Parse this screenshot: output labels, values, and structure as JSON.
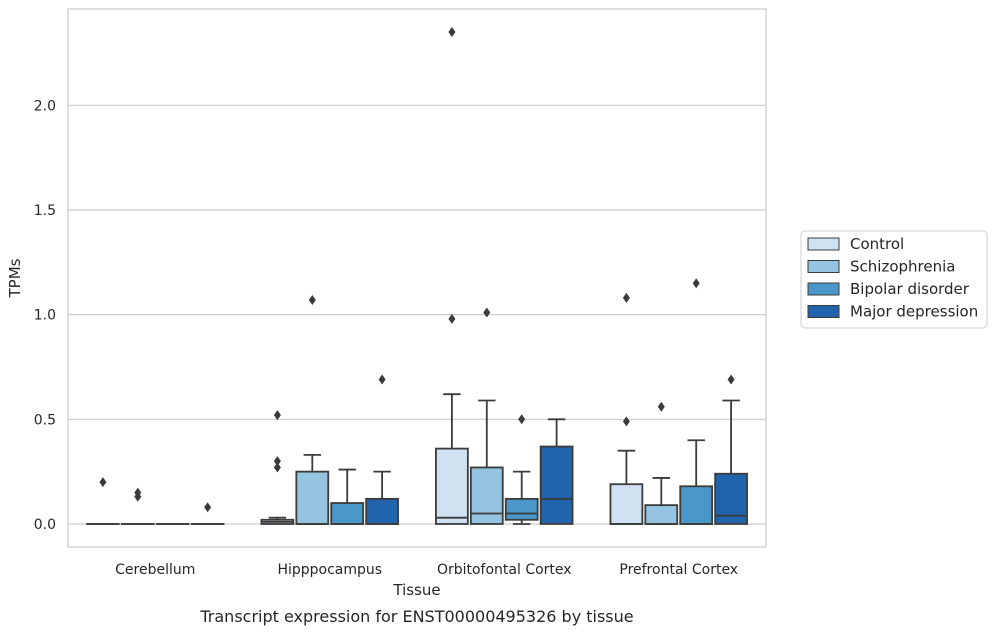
{
  "caption": "Transcript expression for ENST00000495326 by tissue",
  "chart_data": {
    "type": "box",
    "xlabel": "Tissue",
    "ylabel": "TPMs",
    "ylim": [
      -0.11,
      2.46
    ],
    "yticks": [
      0.0,
      0.5,
      1.0,
      1.5,
      2.0
    ],
    "ytick_labels": [
      "0.0",
      "0.5",
      "1.0",
      "1.5",
      "2.0"
    ],
    "categories": [
      "Cerebellum",
      "Hipppocampus",
      "Orbitofontal Cortex",
      "Prefrontal Cortex"
    ],
    "grid": "horizontal",
    "legend_position": "right",
    "series": [
      {
        "name": "Control",
        "color": "#d0e1f2",
        "boxes": [
          {
            "whislo": 0.0,
            "q1": 0.0,
            "med": 0.0,
            "q3": 0.0,
            "whishi": 0.0,
            "fliers": [
              0.2
            ]
          },
          {
            "whislo": 0.0,
            "q1": 0.0,
            "med": 0.01,
            "q3": 0.02,
            "whishi": 0.03,
            "fliers": [
              0.27,
              0.3,
              0.52
            ]
          },
          {
            "whislo": 0.0,
            "q1": 0.0,
            "med": 0.03,
            "q3": 0.36,
            "whishi": 0.62,
            "fliers": [
              0.98,
              2.35
            ]
          },
          {
            "whislo": 0.0,
            "q1": 0.0,
            "med": 0.0,
            "q3": 0.19,
            "whishi": 0.35,
            "fliers": [
              0.49,
              1.08
            ]
          }
        ]
      },
      {
        "name": "Schizophrenia",
        "color": "#94c4df",
        "boxes": [
          {
            "whislo": 0.0,
            "q1": 0.0,
            "med": 0.0,
            "q3": 0.0,
            "whishi": 0.0,
            "fliers": [
              0.13,
              0.15
            ]
          },
          {
            "whislo": 0.0,
            "q1": 0.0,
            "med": 0.0,
            "q3": 0.25,
            "whishi": 0.33,
            "fliers": [
              1.07
            ]
          },
          {
            "whislo": 0.0,
            "q1": 0.0,
            "med": 0.05,
            "q3": 0.27,
            "whishi": 0.59,
            "fliers": [
              1.01
            ]
          },
          {
            "whislo": 0.0,
            "q1": 0.0,
            "med": 0.0,
            "q3": 0.09,
            "whishi": 0.22,
            "fliers": [
              0.56
            ]
          }
        ]
      },
      {
        "name": "Bipolar disorder",
        "color": "#4a98c9",
        "boxes": [
          {
            "whislo": 0.0,
            "q1": 0.0,
            "med": 0.0,
            "q3": 0.0,
            "whishi": 0.0,
            "fliers": []
          },
          {
            "whislo": 0.0,
            "q1": 0.0,
            "med": 0.0,
            "q3": 0.1,
            "whishi": 0.26,
            "fliers": []
          },
          {
            "whislo": 0.0,
            "q1": 0.02,
            "med": 0.05,
            "q3": 0.12,
            "whishi": 0.25,
            "fliers": [
              0.5
            ]
          },
          {
            "whislo": 0.0,
            "q1": 0.0,
            "med": 0.0,
            "q3": 0.18,
            "whishi": 0.4,
            "fliers": [
              1.15
            ]
          }
        ]
      },
      {
        "name": "Major depression",
        "color": "#2164ab",
        "boxes": [
          {
            "whislo": 0.0,
            "q1": 0.0,
            "med": 0.0,
            "q3": 0.0,
            "whishi": 0.0,
            "fliers": [
              0.08
            ]
          },
          {
            "whislo": 0.0,
            "q1": 0.0,
            "med": 0.0,
            "q3": 0.12,
            "whishi": 0.25,
            "fliers": [
              0.69
            ]
          },
          {
            "whislo": 0.0,
            "q1": 0.0,
            "med": 0.12,
            "q3": 0.37,
            "whishi": 0.5,
            "fliers": []
          },
          {
            "whislo": 0.0,
            "q1": 0.0,
            "med": 0.04,
            "q3": 0.24,
            "whishi": 0.59,
            "fliers": [
              0.69
            ]
          }
        ]
      }
    ]
  }
}
